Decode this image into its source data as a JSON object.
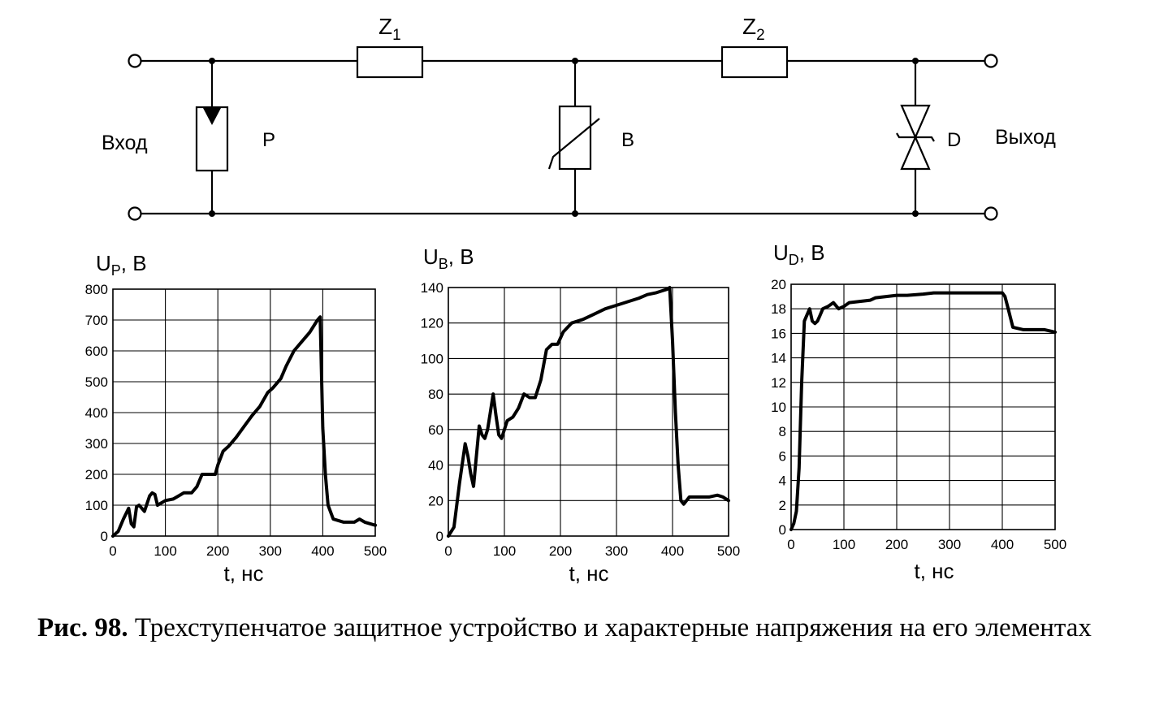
{
  "circuit": {
    "input_label": "Вход",
    "output_label": "Выход",
    "z1_label": "Z",
    "z1_sub": "1",
    "z2_label": "Z",
    "z2_sub": "2",
    "p_label": "P",
    "b_label": "B",
    "d_label": "D"
  },
  "caption": {
    "number": "Рис. 98.",
    "text": "Трехступенчатое защитное устройство и характерные напряжения на его элементах"
  },
  "chart_data": [
    {
      "type": "line",
      "ylabel_main": "U",
      "ylabel_sub": "P",
      "ylabel_unit": ", B",
      "xlabel": "t, нс",
      "xlim": [
        0,
        500
      ],
      "ylim": [
        0,
        800
      ],
      "xticks": [
        0,
        100,
        200,
        300,
        400,
        500
      ],
      "yticks": [
        0,
        100,
        200,
        300,
        400,
        500,
        600,
        700,
        800
      ],
      "grid": true,
      "x": [
        0,
        10,
        20,
        30,
        35,
        40,
        45,
        50,
        60,
        70,
        75,
        80,
        85,
        90,
        100,
        115,
        125,
        135,
        150,
        160,
        170,
        180,
        195,
        200,
        210,
        220,
        235,
        250,
        265,
        280,
        295,
        305,
        320,
        330,
        345,
        360,
        375,
        390,
        395,
        400,
        405,
        410,
        420,
        440,
        460,
        470,
        480,
        490,
        500
      ],
      "y": [
        0,
        15,
        55,
        90,
        40,
        30,
        95,
        100,
        80,
        130,
        140,
        135,
        100,
        105,
        115,
        120,
        130,
        140,
        140,
        160,
        200,
        200,
        200,
        230,
        275,
        290,
        320,
        355,
        390,
        420,
        465,
        480,
        510,
        550,
        600,
        630,
        660,
        700,
        710,
        350,
        200,
        100,
        55,
        45,
        45,
        55,
        45,
        40,
        35
      ]
    },
    {
      "type": "line",
      "ylabel_main": "U",
      "ylabel_sub": "B",
      "ylabel_unit": ", B",
      "xlabel": "t, нс",
      "xlim": [
        0,
        500
      ],
      "ylim": [
        0,
        140
      ],
      "xticks": [
        0,
        100,
        200,
        300,
        400,
        500
      ],
      "yticks": [
        0,
        20,
        40,
        60,
        80,
        100,
        120,
        140
      ],
      "grid": true,
      "x": [
        0,
        10,
        20,
        30,
        35,
        40,
        45,
        50,
        55,
        60,
        65,
        70,
        75,
        80,
        85,
        90,
        95,
        100,
        105,
        115,
        125,
        135,
        145,
        155,
        165,
        175,
        185,
        195,
        205,
        220,
        240,
        260,
        280,
        300,
        320,
        340,
        355,
        370,
        380,
        390,
        395,
        400,
        405,
        410,
        415,
        420,
        430,
        450,
        465,
        480,
        490,
        500
      ],
      "y": [
        0,
        5,
        30,
        52,
        45,
        35,
        28,
        45,
        62,
        57,
        55,
        60,
        70,
        80,
        68,
        57,
        55,
        60,
        65,
        67,
        72,
        80,
        78,
        78,
        88,
        105,
        108,
        108,
        115,
        120,
        122,
        125,
        128,
        130,
        132,
        134,
        136,
        137,
        138,
        139,
        140,
        110,
        70,
        40,
        20,
        18,
        22,
        22,
        22,
        23,
        22,
        20
      ]
    },
    {
      "type": "line",
      "ylabel_main": "U",
      "ylabel_sub": "D",
      "ylabel_unit": ", B",
      "xlabel": "t, нс",
      "xlim": [
        0,
        500
      ],
      "ylim": [
        0,
        20
      ],
      "xticks": [
        0,
        100,
        200,
        300,
        400,
        500
      ],
      "yticks": [
        0,
        2,
        4,
        6,
        8,
        10,
        12,
        14,
        16,
        18,
        20
      ],
      "grid": true,
      "x": [
        0,
        5,
        10,
        15,
        20,
        25,
        30,
        35,
        40,
        45,
        50,
        55,
        60,
        70,
        80,
        90,
        100,
        110,
        130,
        150,
        160,
        180,
        200,
        220,
        250,
        270,
        290,
        320,
        350,
        380,
        400,
        405,
        410,
        420,
        440,
        460,
        480,
        500
      ],
      "y": [
        0,
        0.5,
        1.5,
        5,
        12,
        17,
        17.5,
        18,
        17,
        16.8,
        17,
        17.5,
        18,
        18.2,
        18.5,
        18,
        18.2,
        18.5,
        18.6,
        18.7,
        18.9,
        19,
        19.1,
        19.1,
        19.2,
        19.3,
        19.3,
        19.3,
        19.3,
        19.3,
        19.3,
        19,
        18.2,
        16.5,
        16.3,
        16.3,
        16.3,
        16.1
      ]
    }
  ]
}
